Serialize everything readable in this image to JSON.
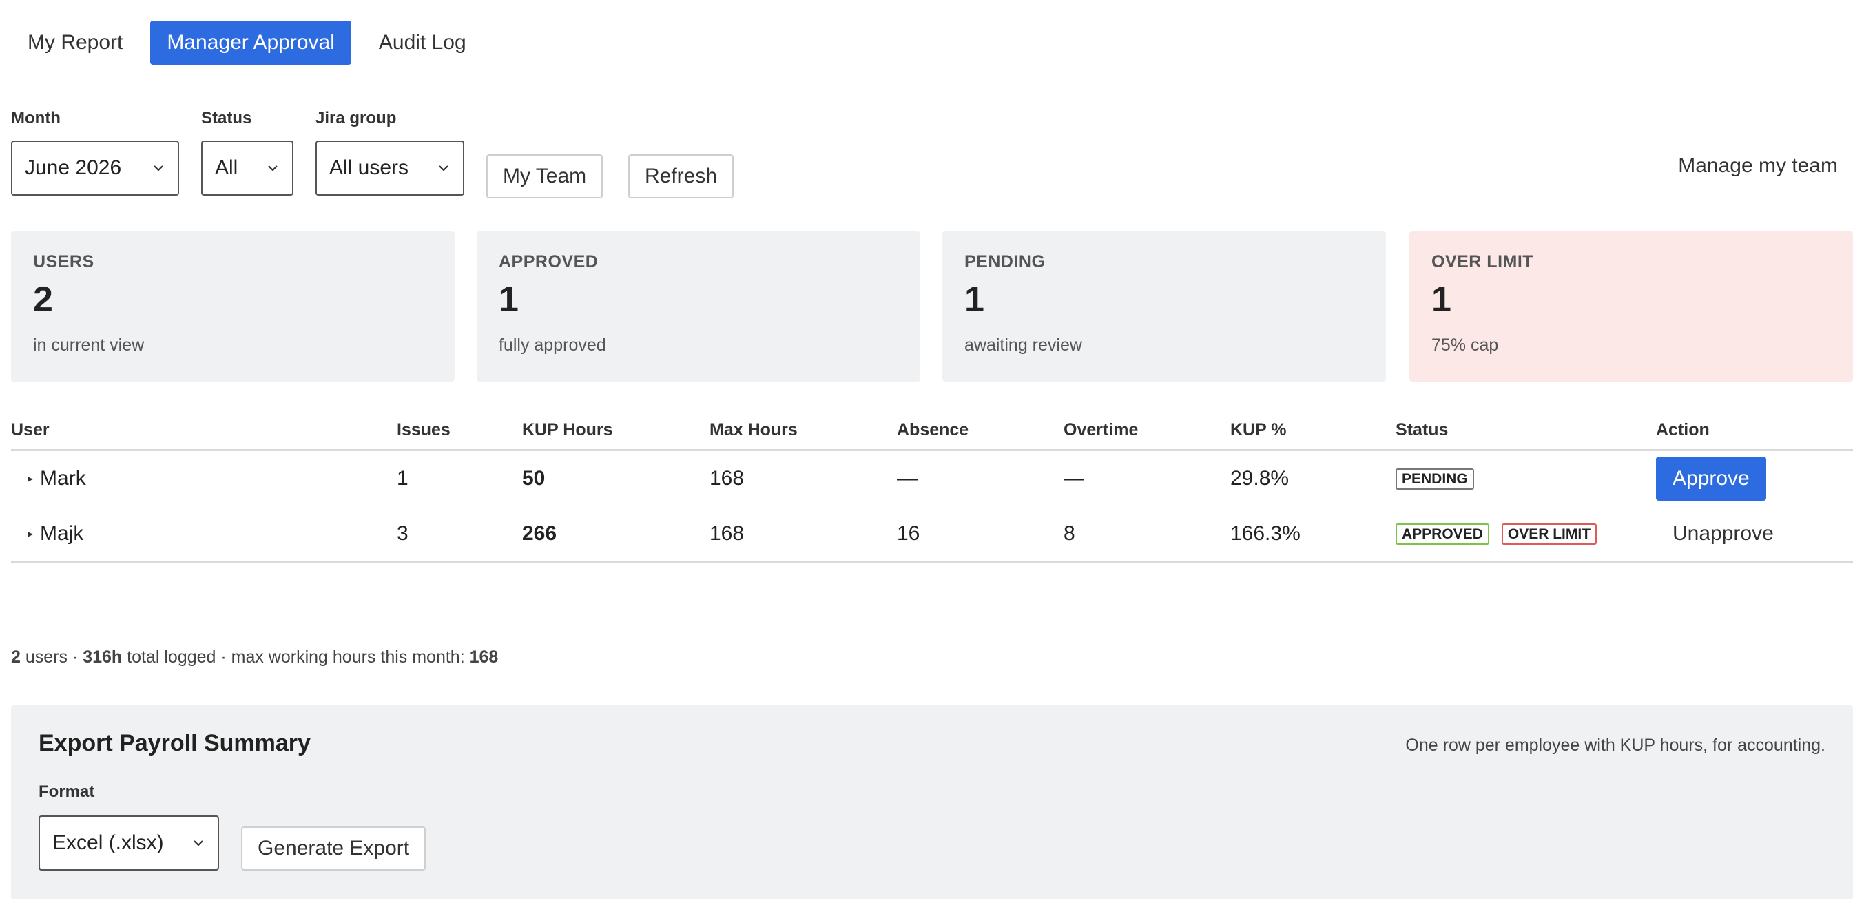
{
  "tabs": [
    {
      "label": "My Report",
      "active": false
    },
    {
      "label": "Manager Approval",
      "active": true
    },
    {
      "label": "Audit Log",
      "active": false
    }
  ],
  "filters": {
    "month": {
      "label": "Month",
      "value": "June 2026"
    },
    "status": {
      "label": "Status",
      "value": "All"
    },
    "jira_group": {
      "label": "Jira group",
      "value": "All users"
    },
    "my_team_button": "My Team",
    "refresh_button": "Refresh",
    "manage_team_link": "Manage my team"
  },
  "stats": [
    {
      "title": "USERS",
      "value": "2",
      "sub": "in current view"
    },
    {
      "title": "APPROVED",
      "value": "1",
      "sub": "fully approved"
    },
    {
      "title": "PENDING",
      "value": "1",
      "sub": "awaiting review"
    },
    {
      "title": "OVER LIMIT",
      "value": "1",
      "sub": "75% cap"
    }
  ],
  "table": {
    "headers": [
      "User",
      "Issues",
      "KUP Hours",
      "Max Hours",
      "Absence",
      "Overtime",
      "KUP %",
      "Status",
      "Action"
    ],
    "rows": [
      {
        "user": "Mark",
        "issues": "1",
        "kup_hours": "50",
        "max_hours": "168",
        "absence": "—",
        "overtime": "—",
        "kup_pct": "29.8%",
        "badges": [
          "PENDING"
        ],
        "action": "Approve"
      },
      {
        "user": "Majk",
        "issues": "3",
        "kup_hours": "266",
        "max_hours": "168",
        "absence": "16",
        "overtime": "8",
        "kup_pct": "166.3%",
        "badges": [
          "APPROVED",
          "OVER LIMIT"
        ],
        "action": "Unapprove"
      }
    ]
  },
  "summary": {
    "users_count": "2",
    "users_text": " users · ",
    "total_logged": "316h",
    "total_text": " total logged · max working hours this month: ",
    "max_hours": "168"
  },
  "export": {
    "title": "Export Payroll Summary",
    "description": "One row per employee with KUP hours, for accounting.",
    "format_label": "Format",
    "format_value": "Excel (.xlsx)",
    "generate_button": "Generate Export"
  },
  "colors": {
    "accent": "#2d6be0",
    "card_bg": "#f0f1f3",
    "over_limit_bg": "#fde8e8",
    "approved_badge": "#7fc24a",
    "over_limit_badge": "#e05a5a"
  }
}
